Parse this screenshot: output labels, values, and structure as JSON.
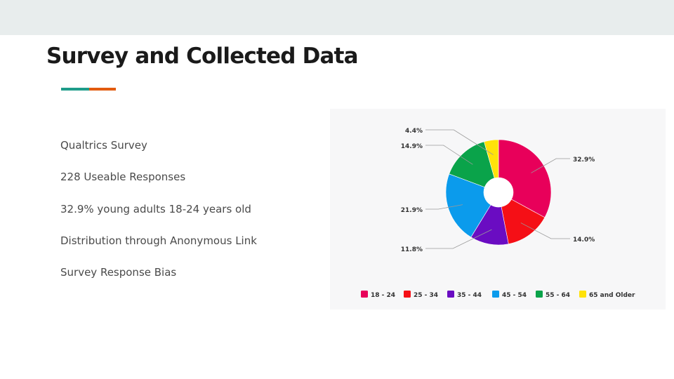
{
  "slide": {
    "title": "Survey and Collected Data",
    "bullets": [
      "Qualtrics Survey",
      "228 Useable Responses",
      "32.9% young adults 18-24 years old",
      "Distribution through Anonymous Link",
      "Survey Response Bias"
    ],
    "colors": {
      "top_band": "#e8eded",
      "accent_teal": "#1e9c8a",
      "accent_orange": "#e25b0f"
    }
  },
  "chart_data": {
    "type": "pie",
    "variant": "donut",
    "legend_position": "bottom",
    "slices": [
      {
        "label": "18 - 24",
        "value": 32.9,
        "value_label": "32.9%",
        "color": "#e8005a"
      },
      {
        "label": "25 - 34",
        "value": 14.0,
        "value_label": "14.0%",
        "color": "#f50f16"
      },
      {
        "label": "35 - 44",
        "value": 11.8,
        "value_label": "11.8%",
        "color": "#6a0cc2"
      },
      {
        "label": "45 - 54",
        "value": 21.9,
        "value_label": "21.9%",
        "color": "#0b9bec"
      },
      {
        "label": "55 - 64",
        "value": 14.9,
        "value_label": "14.9%",
        "color": "#0aa34a"
      },
      {
        "label": "65 and Older",
        "value": 4.4,
        "value_label": "4.4%",
        "color": "#ffe20a"
      }
    ]
  }
}
